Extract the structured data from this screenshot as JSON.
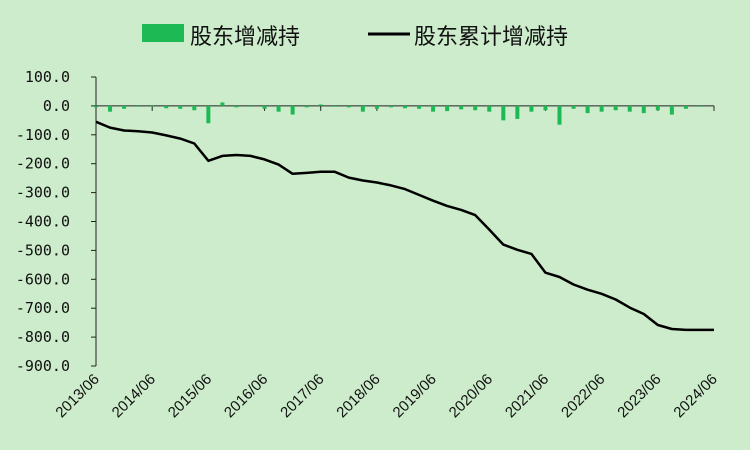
{
  "chart_data": {
    "type": "bar+line",
    "legend": [
      {
        "label": "股东增减持",
        "color": "#1db954",
        "kind": "bar"
      },
      {
        "label": "股东累计增减持",
        "color": "#000000",
        "kind": "line"
      }
    ],
    "legend_position": "top-center",
    "grid": false,
    "ylim": [
      -900,
      100
    ],
    "yticks": [
      "100.0",
      "0.0",
      "-100.0",
      "-200.0",
      "-300.0",
      "-400.0",
      "-500.0",
      "-600.0",
      "-700.0",
      "-800.0",
      "-900.0"
    ],
    "ytick_values": [
      100,
      0,
      -100,
      -200,
      -300,
      -400,
      -500,
      -600,
      -700,
      -800,
      -900
    ],
    "xticks": [
      "2013/06",
      "2014/06",
      "2015/06",
      "2016/06",
      "2017/06",
      "2018/06",
      "2019/06",
      "2020/06",
      "2021/06",
      "2022/06",
      "2023/06",
      "2024/06"
    ],
    "periods": [
      "2013/06",
      "2013/09",
      "2013/12",
      "2014/03",
      "2014/06",
      "2014/09",
      "2014/12",
      "2015/03",
      "2015/06",
      "2015/09",
      "2015/12",
      "2016/03",
      "2016/06",
      "2016/09",
      "2016/12",
      "2017/03",
      "2017/06",
      "2017/09",
      "2017/12",
      "2018/03",
      "2018/06",
      "2018/09",
      "2018/12",
      "2019/03",
      "2019/06",
      "2019/09",
      "2019/12",
      "2020/03",
      "2020/06",
      "2020/09",
      "2020/12",
      "2021/03",
      "2021/06",
      "2021/09",
      "2021/12",
      "2022/03",
      "2022/06",
      "2022/09",
      "2022/12",
      "2023/03",
      "2023/06",
      "2023/09",
      "2023/12",
      "2024/03",
      "2024/06"
    ],
    "series": [
      {
        "name": "股东增减持",
        "type": "bar",
        "color": "#1db954",
        "values": [
          -5,
          -20,
          -10,
          -3,
          -3,
          -8,
          -10,
          -15,
          -60,
          12,
          -5,
          -3,
          -10,
          -20,
          -30,
          -5,
          5,
          -3,
          -5,
          -20,
          -10,
          -5,
          -8,
          -10,
          -20,
          -18,
          -12,
          -15,
          -20,
          -50,
          -45,
          -20,
          -15,
          -65,
          -10,
          -25,
          -20,
          -15,
          -20,
          -25,
          -15,
          -30,
          -10,
          -3,
          0
        ]
      },
      {
        "name": "股东累计增减持",
        "type": "line",
        "color": "#000000",
        "values": [
          -55,
          -75,
          -85,
          -88,
          -92,
          -102,
          -113,
          -130,
          -190,
          -173,
          -170,
          -173,
          -185,
          -203,
          -235,
          -232,
          -228,
          -228,
          -248,
          -258,
          -265,
          -275,
          -288,
          -308,
          -328,
          -346,
          -360,
          -378,
          -428,
          -480,
          -498,
          -512,
          -577,
          -592,
          -618,
          -636,
          -650,
          -670,
          -698,
          -720,
          -758,
          -772,
          -775,
          -775,
          -775
        ]
      }
    ]
  }
}
